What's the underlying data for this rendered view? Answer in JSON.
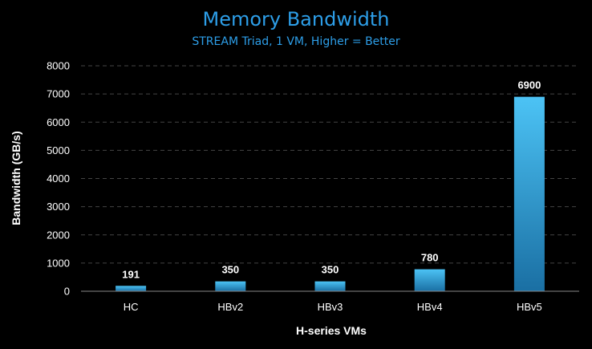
{
  "chart_data": {
    "type": "bar",
    "title": "Memory Bandwidth",
    "subtitle": "STREAM Triad, 1 VM, Higher = Better",
    "xlabel": "H-series VMs",
    "ylabel": "Bandwidth (GB/s)",
    "categories": [
      "HC",
      "HBv2",
      "HBv3",
      "HBv4",
      "HBv5"
    ],
    "values": [
      191,
      350,
      350,
      780,
      6900
    ],
    "ylim": [
      0,
      8000
    ],
    "yticks": [
      0,
      1000,
      2000,
      3000,
      4000,
      5000,
      6000,
      7000,
      8000
    ],
    "grid": true,
    "colors": {
      "background": "#000000",
      "title": "#2d9ee8",
      "bar_top": "#4cc3f5",
      "bar_bottom": "#1a6fa3"
    }
  }
}
